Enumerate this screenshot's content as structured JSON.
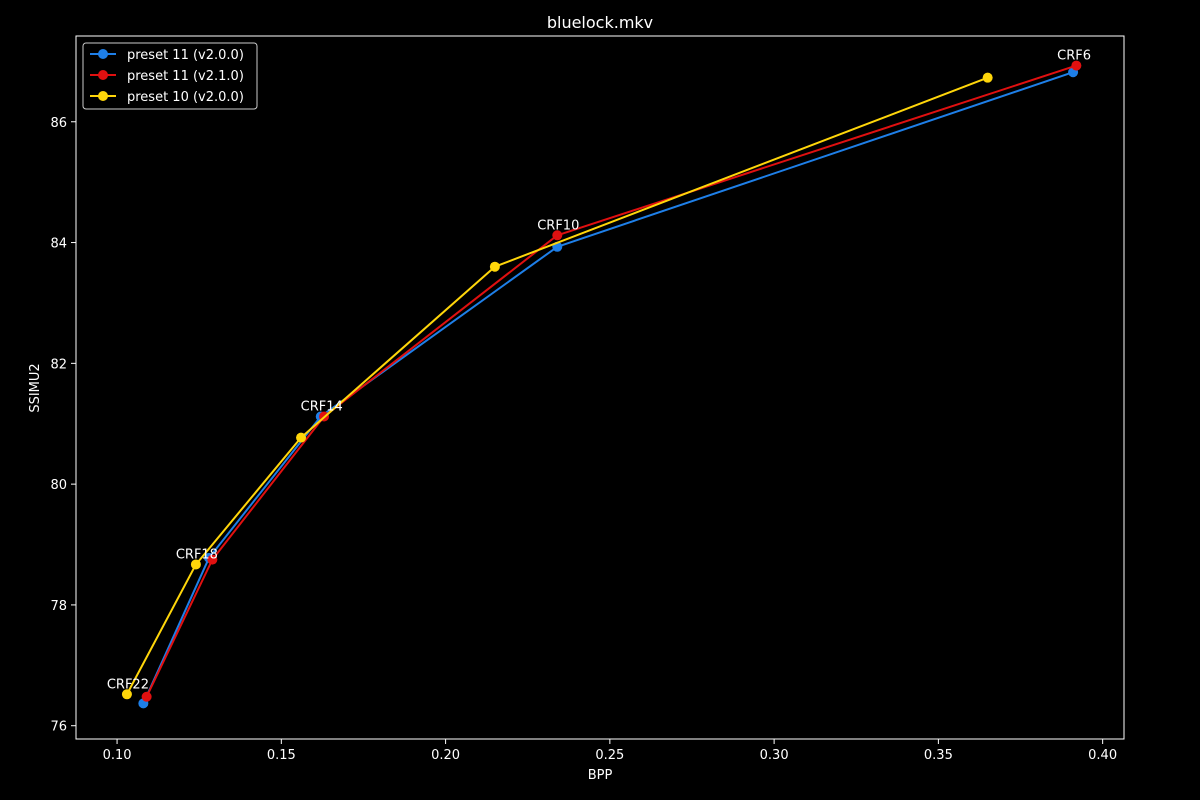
{
  "chart_data": {
    "type": "line",
    "title": "bluelock.mkv",
    "xlabel": "BPP",
    "ylabel": "SSIMU2",
    "xlim": [
      0.0875,
      0.4065
    ],
    "ylim": [
      75.78,
      87.42
    ],
    "xticks": [
      "0.10",
      "0.15",
      "0.20",
      "0.25",
      "0.30",
      "0.35",
      "0.40"
    ],
    "yticks": [
      "76",
      "78",
      "80",
      "82",
      "84",
      "86"
    ],
    "grid": false,
    "legend_position": "top-left",
    "series": [
      {
        "name": "preset 11 (v2.0.0)",
        "color": "#1E7FE8",
        "x": [
          0.108,
          0.128,
          0.162,
          0.234,
          0.391
        ],
        "y": [
          76.37,
          78.78,
          81.12,
          83.93,
          86.82
        ]
      },
      {
        "name": "preset 11 (v2.1.0)",
        "color": "#E01010",
        "x": [
          0.109,
          0.129,
          0.163,
          0.234,
          0.392
        ],
        "y": [
          76.48,
          78.75,
          81.12,
          84.12,
          86.93
        ]
      },
      {
        "name": "preset 10 (v2.0.0)",
        "color": "#FFD60A",
        "x": [
          0.103,
          0.124,
          0.156,
          0.215,
          0.365
        ],
        "y": [
          76.52,
          78.67,
          80.77,
          83.6,
          86.73
        ]
      }
    ],
    "annotations": [
      {
        "text": "CRF22",
        "x": 0.103,
        "y": 76.52
      },
      {
        "text": "CRF18",
        "x": 0.124,
        "y": 78.67
      },
      {
        "text": "CRF14",
        "x": 0.162,
        "y": 81.12
      },
      {
        "text": "CRF10",
        "x": 0.234,
        "y": 84.12
      },
      {
        "text": "CRF6",
        "x": 0.391,
        "y": 86.93
      }
    ]
  }
}
